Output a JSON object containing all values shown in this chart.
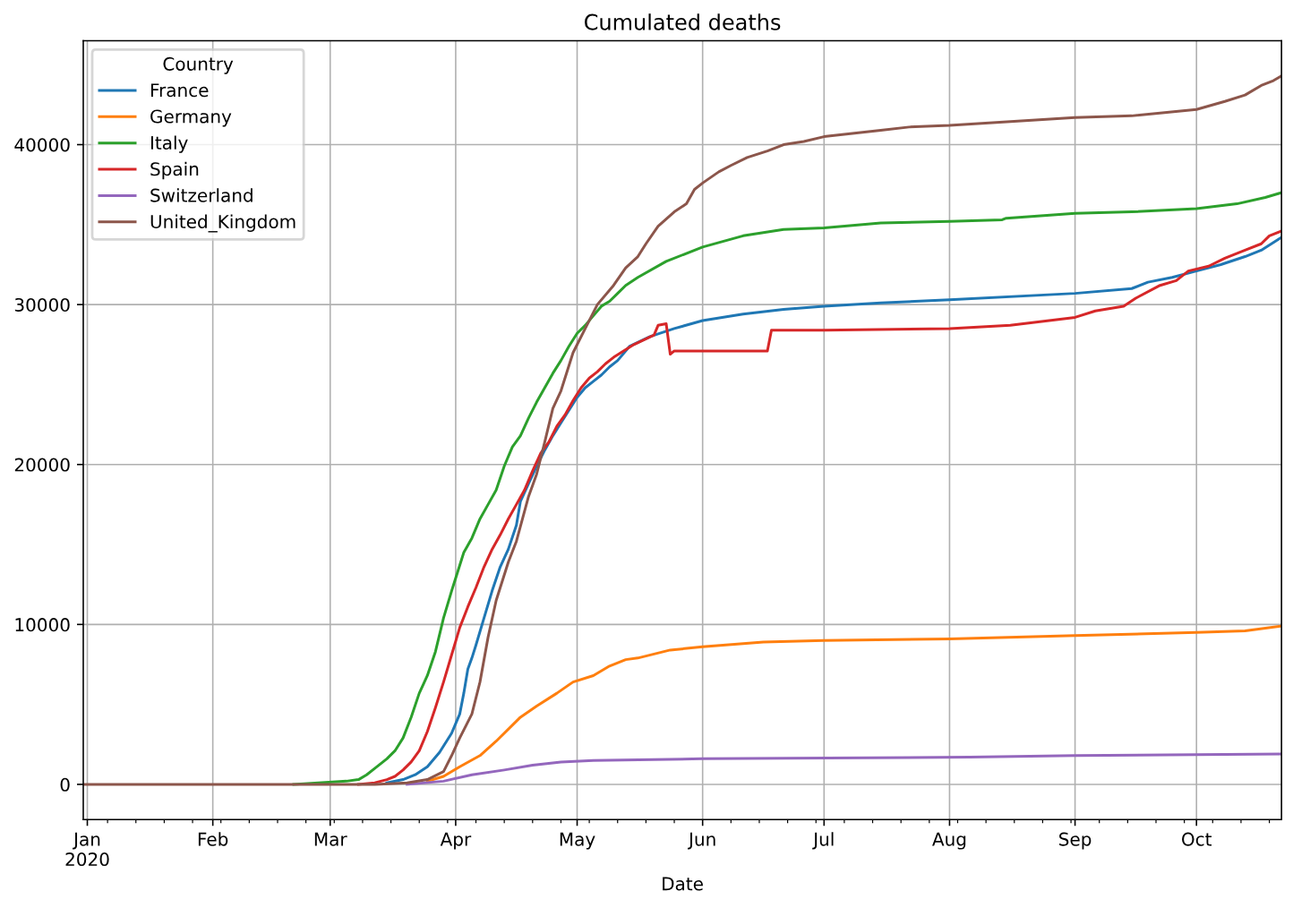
{
  "chart_data": {
    "type": "line",
    "title": "Cumulated deaths",
    "xlabel": "Date",
    "legend_title": "Country",
    "legend": "top left",
    "grid": true,
    "line_style": "solid",
    "xlim": [
      "2019-12-31",
      "2020-10-22"
    ],
    "ylim": [
      -2200,
      46500
    ],
    "yticks": [
      0,
      10000,
      20000,
      30000,
      40000
    ],
    "xticks": [
      {
        "value": "2020-01-01",
        "label": "Jan\n2020"
      },
      {
        "value": "2020-02-01",
        "label": "Feb"
      },
      {
        "value": "2020-03-01",
        "label": "Mar"
      },
      {
        "value": "2020-04-01",
        "label": "Apr"
      },
      {
        "value": "2020-05-01",
        "label": "May"
      },
      {
        "value": "2020-06-01",
        "label": "Jun"
      },
      {
        "value": "2020-07-01",
        "label": "Jul"
      },
      {
        "value": "2020-08-01",
        "label": "Aug"
      },
      {
        "value": "2020-09-01",
        "label": "Sep"
      },
      {
        "value": "2020-10-01",
        "label": "Oct"
      },
      {
        "value": "2020-01-06",
        "label": null
      },
      {
        "value": "2020-01-13",
        "label": null
      },
      {
        "value": "2020-01-20",
        "label": null
      },
      {
        "value": "2020-01-27",
        "label": null
      },
      {
        "value": "2020-02-03",
        "label": null
      },
      {
        "value": "2020-02-10",
        "label": null
      },
      {
        "value": "2020-02-17",
        "label": null
      },
      {
        "value": "2020-02-24",
        "label": null
      },
      {
        "value": "2020-03-02",
        "label": null
      },
      {
        "value": "2020-03-09",
        "label": null
      },
      {
        "value": "2020-03-16",
        "label": null
      },
      {
        "value": "2020-03-23",
        "label": null
      },
      {
        "value": "2020-03-30",
        "label": null
      },
      {
        "value": "2020-04-06",
        "label": null
      },
      {
        "value": "2020-04-13",
        "label": null
      },
      {
        "value": "2020-04-20",
        "label": null
      },
      {
        "value": "2020-04-27",
        "label": null
      },
      {
        "value": "2020-05-04",
        "label": null
      },
      {
        "value": "2020-05-11",
        "label": null
      },
      {
        "value": "2020-05-18",
        "label": null
      },
      {
        "value": "2020-05-25",
        "label": null
      },
      {
        "value": "2020-06-08",
        "label": null
      },
      {
        "value": "2020-06-15",
        "label": null
      },
      {
        "value": "2020-06-22",
        "label": null
      },
      {
        "value": "2020-06-29",
        "label": null
      },
      {
        "value": "2020-07-06",
        "label": null
      },
      {
        "value": "2020-07-13",
        "label": null
      },
      {
        "value": "2020-07-20",
        "label": null
      },
      {
        "value": "2020-07-27",
        "label": null
      },
      {
        "value": "2020-08-03",
        "label": null
      },
      {
        "value": "2020-08-10",
        "label": null
      },
      {
        "value": "2020-08-17",
        "label": null
      },
      {
        "value": "2020-08-24",
        "label": null
      },
      {
        "value": "2020-08-31",
        "label": null
      },
      {
        "value": "2020-09-07",
        "label": null
      },
      {
        "value": "2020-09-14",
        "label": null
      },
      {
        "value": "2020-09-21",
        "label": null
      },
      {
        "value": "2020-09-28",
        "label": null
      },
      {
        "value": "2020-10-05",
        "label": null
      },
      {
        "value": "2020-10-12",
        "label": null
      },
      {
        "value": "2020-10-19",
        "label": null
      }
    ],
    "series": [
      {
        "name": "France",
        "color": "#1f77b4",
        "x": [
          "2020-03-15",
          "2020-03-19",
          "2020-03-22",
          "2020-03-25",
          "2020-03-28",
          "2020-03-31",
          "2020-04-02",
          "2020-04-03",
          "2020-04-04",
          "2020-04-05",
          "2020-04-06",
          "2020-04-08",
          "2020-04-10",
          "2020-04-12",
          "2020-04-14",
          "2020-04-16",
          "2020-04-17",
          "2020-04-19",
          "2020-04-21",
          "2020-04-23",
          "2020-04-25",
          "2020-04-27",
          "2020-04-29",
          "2020-05-01",
          "2020-05-03",
          "2020-05-05",
          "2020-05-07",
          "2020-05-09",
          "2020-05-11",
          "2020-05-14",
          "2020-05-19",
          "2020-05-25",
          "2020-06-01",
          "2020-06-11",
          "2020-06-21",
          "2020-07-01",
          "2020-07-15",
          "2020-08-01",
          "2020-09-01",
          "2020-09-15",
          "2020-09-19",
          "2020-09-25",
          "2020-10-01",
          "2020-10-07",
          "2020-10-13",
          "2020-10-17",
          "2020-10-22"
        ],
        "values": [
          100,
          300,
          600,
          1100,
          2000,
          3200,
          4400,
          5700,
          7200,
          7900,
          8700,
          10400,
          12100,
          13600,
          14700,
          16200,
          17700,
          18800,
          19900,
          20900,
          21800,
          22600,
          23400,
          24200,
          24800,
          25200,
          25600,
          26100,
          26500,
          27400,
          28000,
          28500,
          29000,
          29400,
          29700,
          29900,
          30100,
          30300,
          30700,
          31000,
          31400,
          31700,
          32100,
          32500,
          33000,
          33400,
          34200
        ]
      },
      {
        "name": "Germany",
        "color": "#ff7f0e",
        "x": [
          "2020-03-25",
          "2020-03-29",
          "2020-04-02",
          "2020-04-07",
          "2020-04-11",
          "2020-04-17",
          "2020-04-21",
          "2020-04-26",
          "2020-04-30",
          "2020-05-05",
          "2020-05-09",
          "2020-05-13",
          "2020-05-16",
          "2020-05-24",
          "2020-06-01",
          "2020-06-16",
          "2020-07-01",
          "2020-08-01",
          "2020-09-01",
          "2020-10-01",
          "2020-10-13",
          "2020-10-22"
        ],
        "values": [
          200,
          500,
          1100,
          1800,
          2700,
          4200,
          4900,
          5700,
          6400,
          6800,
          7400,
          7800,
          7900,
          8400,
          8600,
          8900,
          9000,
          9100,
          9300,
          9500,
          9600,
          9900
        ]
      },
      {
        "name": "Italy",
        "color": "#2ca02c",
        "x": [
          "2020-02-21",
          "2020-03-05",
          "2020-03-08",
          "2020-03-10",
          "2020-03-12",
          "2020-03-15",
          "2020-03-17",
          "2020-03-19",
          "2020-03-21",
          "2020-03-23",
          "2020-03-25",
          "2020-03-27",
          "2020-03-29",
          "2020-03-31",
          "2020-04-03",
          "2020-04-05",
          "2020-04-07",
          "2020-04-09",
          "2020-04-11",
          "2020-04-13",
          "2020-04-15",
          "2020-04-17",
          "2020-04-19",
          "2020-04-21",
          "2020-04-23",
          "2020-04-25",
          "2020-04-27",
          "2020-04-29",
          "2020-05-01",
          "2020-05-03",
          "2020-05-05",
          "2020-05-07",
          "2020-05-09",
          "2020-05-11",
          "2020-05-13",
          "2020-05-16",
          "2020-05-23",
          "2020-06-01",
          "2020-06-11",
          "2020-06-21",
          "2020-07-01",
          "2020-07-15",
          "2020-08-01",
          "2020-08-14",
          "2020-08-15",
          "2020-09-01",
          "2020-09-15",
          "2020-10-01",
          "2020-10-11",
          "2020-10-18",
          "2020-10-22"
        ],
        "values": [
          0,
          200,
          300,
          600,
          1000,
          1600,
          2100,
          2900,
          4200,
          5700,
          6800,
          8300,
          10400,
          12100,
          14500,
          15400,
          16600,
          17500,
          18400,
          19900,
          21100,
          21800,
          22900,
          23900,
          24800,
          25700,
          26500,
          27400,
          28200,
          28700,
          29300,
          29900,
          30200,
          30700,
          31200,
          31700,
          32700,
          33600,
          34300,
          34700,
          34800,
          35100,
          35200,
          35300,
          35400,
          35700,
          35800,
          36000,
          36300,
          36700,
          37000
        ]
      },
      {
        "name": "Spain",
        "color": "#d62728",
        "x": [
          "2020-03-08",
          "2020-03-12",
          "2020-03-15",
          "2020-03-17",
          "2020-03-19",
          "2020-03-21",
          "2020-03-23",
          "2020-03-25",
          "2020-03-27",
          "2020-03-29",
          "2020-03-31",
          "2020-04-02",
          "2020-04-04",
          "2020-04-06",
          "2020-04-08",
          "2020-04-10",
          "2020-04-12",
          "2020-04-14",
          "2020-04-16",
          "2020-04-18",
          "2020-04-20",
          "2020-04-22",
          "2020-04-24",
          "2020-04-26",
          "2020-04-28",
          "2020-04-30",
          "2020-05-02",
          "2020-05-04",
          "2020-05-06",
          "2020-05-08",
          "2020-05-10",
          "2020-05-15",
          "2020-05-20",
          "2020-05-21",
          "2020-05-23",
          "2020-05-24",
          "2020-05-25",
          "2020-06-17",
          "2020-06-18",
          "2020-07-01",
          "2020-08-01",
          "2020-08-16",
          "2020-09-01",
          "2020-09-06",
          "2020-09-13",
          "2020-09-16",
          "2020-09-22",
          "2020-09-26",
          "2020-09-29",
          "2020-10-04",
          "2020-10-08",
          "2020-10-13",
          "2020-10-17",
          "2020-10-19",
          "2020-10-22"
        ],
        "values": [
          0,
          100,
          300,
          500,
          900,
          1400,
          2100,
          3300,
          4800,
          6400,
          8100,
          9800,
          11100,
          12300,
          13600,
          14700,
          15600,
          16600,
          17500,
          18400,
          19600,
          20700,
          21400,
          22400,
          23100,
          24000,
          24800,
          25400,
          25800,
          26300,
          26700,
          27500,
          28100,
          28700,
          28800,
          26900,
          27100,
          27100,
          28400,
          28400,
          28500,
          28700,
          29200,
          29600,
          29900,
          30400,
          31200,
          31500,
          32100,
          32400,
          32900,
          33400,
          33800,
          34300,
          34600
        ]
      },
      {
        "name": "Switzerland",
        "color": "#9467bd",
        "x": [
          "2020-03-20",
          "2020-03-29",
          "2020-04-05",
          "2020-04-13",
          "2020-04-20",
          "2020-04-27",
          "2020-05-05",
          "2020-06-01",
          "2020-08-06",
          "2020-09-01",
          "2020-10-22"
        ],
        "values": [
          0,
          200,
          600,
          900,
          1200,
          1400,
          1500,
          1600,
          1700,
          1800,
          1900
        ]
      },
      {
        "name": "United_Kingdom",
        "color": "#8c564b",
        "x": [
          "2019-12-31",
          "2020-03-12",
          "2020-03-20",
          "2020-03-25",
          "2020-03-29",
          "2020-03-31",
          "2020-04-02",
          "2020-04-05",
          "2020-04-07",
          "2020-04-09",
          "2020-04-11",
          "2020-04-14",
          "2020-04-16",
          "2020-04-19",
          "2020-04-21",
          "2020-04-23",
          "2020-04-25",
          "2020-04-27",
          "2020-04-30",
          "2020-05-03",
          "2020-05-06",
          "2020-05-10",
          "2020-05-13",
          "2020-05-16",
          "2020-05-18",
          "2020-05-21",
          "2020-05-25",
          "2020-05-28",
          "2020-05-30",
          "2020-06-01",
          "2020-06-05",
          "2020-06-08",
          "2020-06-12",
          "2020-06-17",
          "2020-06-21",
          "2020-06-26",
          "2020-07-01",
          "2020-07-08",
          "2020-07-15",
          "2020-07-22",
          "2020-08-01",
          "2020-09-01",
          "2020-09-15",
          "2020-10-01",
          "2020-10-08",
          "2020-10-13",
          "2020-10-17",
          "2020-10-20",
          "2020-10-22"
        ],
        "values": [
          0,
          0,
          100,
          300,
          800,
          1800,
          2900,
          4400,
          6400,
          9200,
          11500,
          13900,
          15200,
          18000,
          19400,
          21400,
          23500,
          24600,
          27000,
          28500,
          30000,
          31200,
          32300,
          33000,
          33800,
          34900,
          35800,
          36300,
          37200,
          37600,
          38300,
          38700,
          39200,
          39600,
          40000,
          40200,
          40500,
          40700,
          40900,
          41100,
          41200,
          41700,
          41800,
          42200,
          42700,
          43100,
          43700,
          44000,
          44300
        ]
      }
    ]
  }
}
